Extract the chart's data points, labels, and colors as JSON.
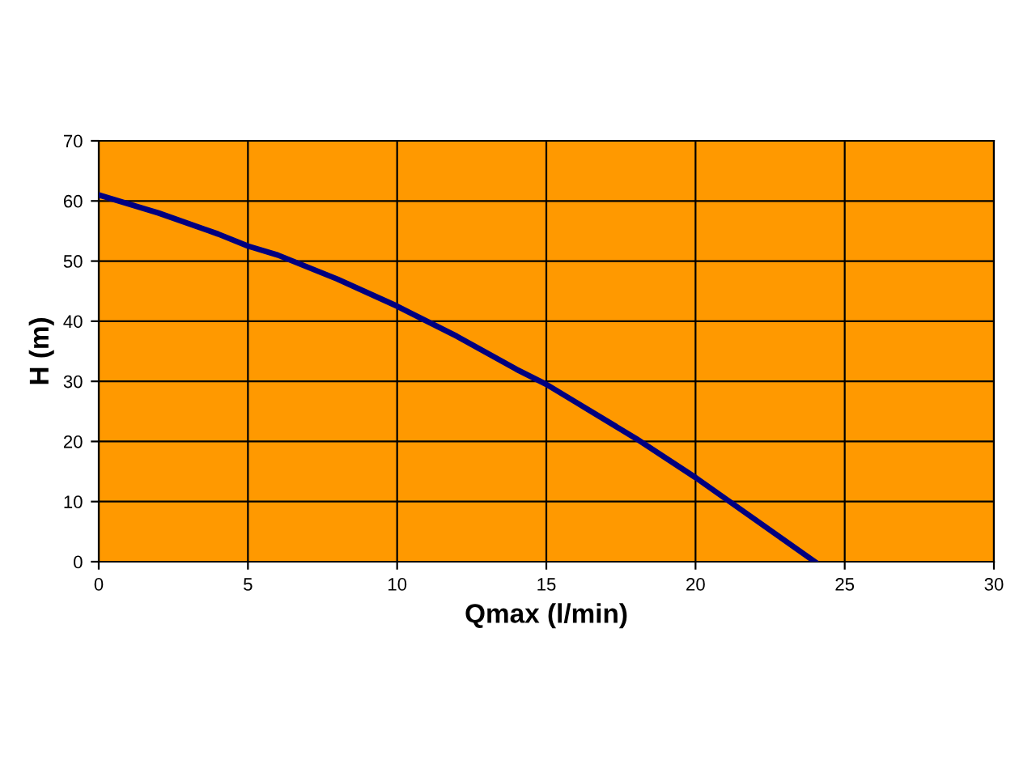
{
  "chart_data": {
    "type": "line",
    "xlabel": "Qmax (l/min)",
    "ylabel": "H (m)",
    "x": [
      0,
      2,
      4,
      5,
      6,
      8,
      10,
      12,
      14,
      15,
      16,
      18,
      20,
      22,
      24
    ],
    "series": [
      {
        "color": "#000080",
        "values": [
          61,
          58,
          54.5,
          52.5,
          51,
          47,
          42.5,
          37.5,
          32,
          29.5,
          26.5,
          20.5,
          14,
          7,
          0
        ]
      }
    ],
    "xlim": [
      0,
      30
    ],
    "ylim": [
      0,
      70
    ],
    "xticks": [
      0,
      5,
      10,
      15,
      20,
      25,
      30
    ],
    "yticks": [
      0,
      10,
      20,
      30,
      40,
      50,
      60,
      70
    ],
    "grid": true,
    "marker": "none",
    "line_style": "solid"
  }
}
